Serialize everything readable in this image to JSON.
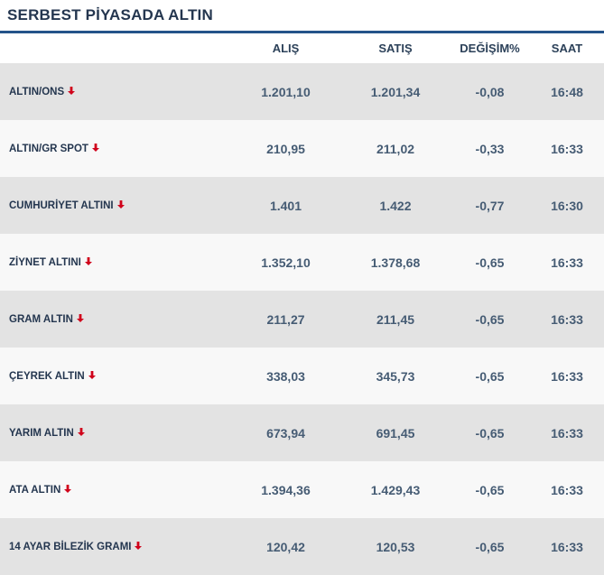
{
  "header": {
    "title": "SERBEST PİYASADA ALTIN"
  },
  "columns": {
    "name": "",
    "buy": "ALIŞ",
    "sell": "SATIŞ",
    "change": "DEĞİŞİM%",
    "time": "SAAT"
  },
  "rows": [
    {
      "name": "ALTIN/ONS",
      "buy": "1.201,10",
      "sell": "1.201,34",
      "change": "-0,08",
      "time": "16:48"
    },
    {
      "name": "ALTIN/GR SPOT",
      "buy": "210,95",
      "sell": "211,02",
      "change": "-0,33",
      "time": "16:33"
    },
    {
      "name": "CUMHURİYET ALTINI",
      "buy": "1.401",
      "sell": "1.422",
      "change": "-0,77",
      "time": "16:30"
    },
    {
      "name": "ZİYNET ALTINI",
      "buy": "1.352,10",
      "sell": "1.378,68",
      "change": "-0,65",
      "time": "16:33"
    },
    {
      "name": "GRAM ALTIN",
      "buy": "211,27",
      "sell": "211,45",
      "change": "-0,65",
      "time": "16:33"
    },
    {
      "name": "ÇEYREK ALTIN",
      "buy": "338,03",
      "sell": "345,73",
      "change": "-0,65",
      "time": "16:33"
    },
    {
      "name": "YARIM ALTIN",
      "buy": "673,94",
      "sell": "691,45",
      "change": "-0,65",
      "time": "16:33"
    },
    {
      "name": "ATA ALTIN",
      "buy": "1.394,36",
      "sell": "1.429,43",
      "change": "-0,65",
      "time": "16:33"
    },
    {
      "name": "14 AYAR BİLEZİK GRAMI",
      "buy": "120,42",
      "sell": "120,53",
      "change": "-0,65",
      "time": "16:33"
    }
  ],
  "icons": {
    "trend": "arrow-down-icon"
  },
  "colors": {
    "accent": "#24538a",
    "down_arrow": "#d0021b"
  }
}
